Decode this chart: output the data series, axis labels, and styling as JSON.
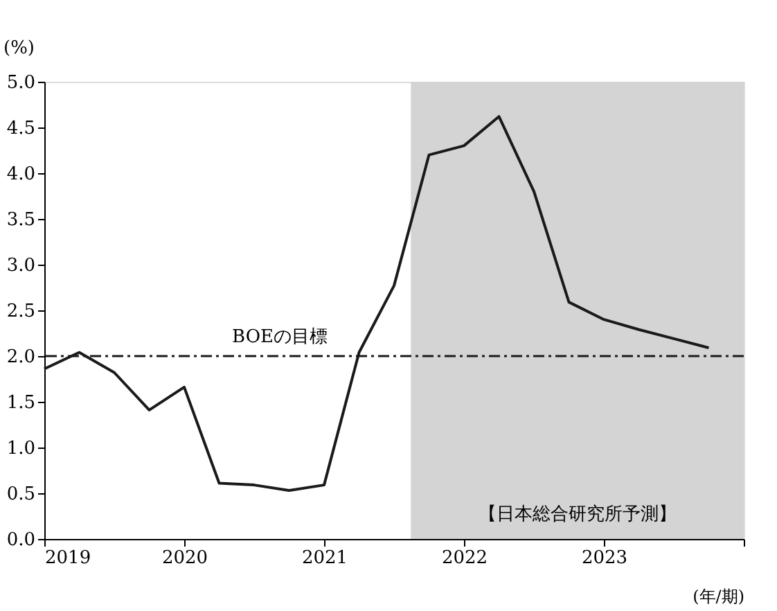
{
  "chart_data": {
    "type": "line",
    "ylabel": "(%)",
    "xlabel": "(年/期)",
    "x": [
      2019.0,
      2019.25,
      2019.5,
      2019.75,
      2020.0,
      2020.25,
      2020.5,
      2020.75,
      2021.0,
      2021.25,
      2021.5,
      2021.75,
      2022.0,
      2022.25,
      2022.5,
      2022.75,
      2023.0,
      2023.25,
      2023.5,
      2023.75
    ],
    "series": [
      {
        "color": "#1a1a1a",
        "values": [
          1.86,
          2.04,
          1.82,
          1.41,
          1.66,
          0.61,
          0.59,
          0.53,
          0.59,
          2.04,
          2.77,
          4.2,
          4.3,
          4.62,
          3.8,
          2.59,
          2.4,
          2.29,
          2.19,
          2.09
        ]
      }
    ],
    "xlim": [
      2019,
      2024
    ],
    "xticks": [
      2019,
      2020,
      2021,
      2022,
      2023,
      {
        "value": 2024,
        "label": null
      }
    ],
    "ylim": [
      0,
      5
    ],
    "yticks": [
      {
        "value": 0,
        "label": "0.0"
      },
      0.5,
      {
        "value": 1,
        "label": "1.0"
      },
      1.5,
      {
        "value": 2,
        "label": "2.0"
      },
      2.5,
      {
        "value": 3,
        "label": "3.0"
      },
      3.5,
      {
        "value": 4,
        "label": "4.0"
      },
      4.5,
      {
        "value": 5,
        "label": "5.0"
      }
    ],
    "ref_lines": [
      {
        "axis": "y",
        "value": 2,
        "label": "BOEの目標",
        "color": "#1a1a1a",
        "line_style": "dashdot"
      }
    ],
    "bands": [
      {
        "axis": "x",
        "from": 2021.62,
        "to": 2024,
        "label": "【日本総合研究所予測】",
        "color": "#d4d4d4"
      }
    ],
    "grid": false,
    "marker": "none",
    "line_style": "solid"
  }
}
